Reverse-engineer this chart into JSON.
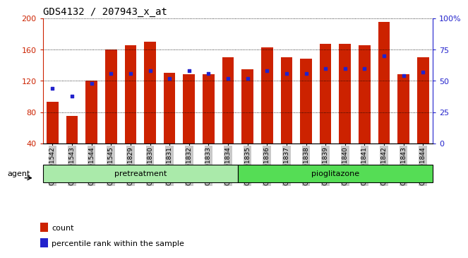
{
  "title": "GDS4132 / 207943_x_at",
  "samples": [
    "GSM201542",
    "GSM201543",
    "GSM201544",
    "GSM201545",
    "GSM201829",
    "GSM201830",
    "GSM201831",
    "GSM201832",
    "GSM201833",
    "GSM201834",
    "GSM201835",
    "GSM201836",
    "GSM201837",
    "GSM201838",
    "GSM201839",
    "GSM201840",
    "GSM201841",
    "GSM201842",
    "GSM201843",
    "GSM201844"
  ],
  "count_values": [
    93,
    75,
    120,
    160,
    165,
    170,
    130,
    128,
    128,
    150,
    135,
    163,
    150,
    148,
    167,
    167,
    165,
    195,
    128,
    150
  ],
  "percentile_values": [
    44,
    38,
    48,
    56,
    56,
    58,
    52,
    58,
    56,
    52,
    52,
    58,
    56,
    56,
    60,
    60,
    60,
    70,
    54,
    57
  ],
  "n_pretreatment": 10,
  "n_pioglitazone": 10,
  "bar_color": "#cc2200",
  "dot_color": "#2222cc",
  "left_axis_color": "#cc2200",
  "right_axis_color": "#2222cc",
  "ylim_left": [
    40,
    200
  ],
  "ylim_right": [
    0,
    100
  ],
  "background_color": "#ffffff",
  "xtick_bg": "#c8c8c8",
  "pretreat_color": "#aaeaaa",
  "pioglitazone_color": "#55dd55",
  "agent_label": "agent",
  "legend_count": "count",
  "legend_pct": "percentile rank within the sample",
  "title_fontsize": 10,
  "tick_fontsize": 6.5,
  "left_ticks": [
    40,
    80,
    120,
    160,
    200
  ],
  "left_tick_labels": [
    "40",
    "80",
    "120",
    "160",
    "200"
  ],
  "right_ticks": [
    0,
    25,
    50,
    75,
    100
  ],
  "right_tick_labels": [
    "0",
    "25",
    "50",
    "75",
    "100%"
  ]
}
